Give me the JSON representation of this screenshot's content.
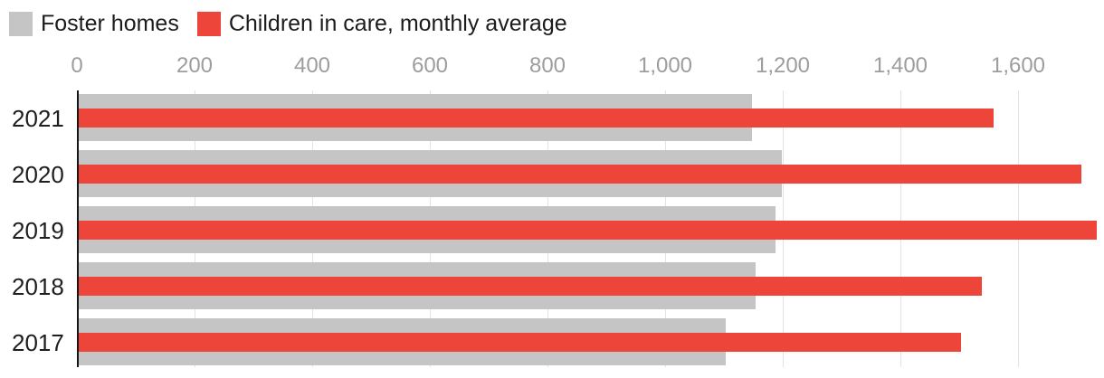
{
  "legend": {
    "items": [
      {
        "label": "Foster homes",
        "color": "#c5c5c5"
      },
      {
        "label": "Children in care, monthly average",
        "color": "#ed4539"
      }
    ]
  },
  "chart_data": {
    "type": "bar",
    "orientation": "horizontal",
    "title": "",
    "categories": [
      "2021",
      "2020",
      "2019",
      "2018",
      "2017"
    ],
    "series": [
      {
        "name": "Foster homes",
        "color": "#c5c5c5",
        "values": [
          1145,
          1195,
          1185,
          1150,
          1100
        ]
      },
      {
        "name": "Children in care, monthly average",
        "color": "#ed4539",
        "values": [
          1555,
          1705,
          1730,
          1535,
          1500
        ]
      }
    ],
    "x_axis": {
      "position": "top",
      "tick_labels": [
        "0",
        "200",
        "400",
        "600",
        "800",
        "1,000",
        "1,200",
        "1,400",
        "1,600"
      ],
      "tick_values": [
        0,
        200,
        400,
        600,
        800,
        1000,
        1200,
        1400,
        1600
      ],
      "range": [
        0,
        1748
      ]
    },
    "grid": true,
    "legend_position": "top-left"
  },
  "colors": {
    "grid": "#e3e3e3",
    "axis_line": "#161616",
    "tick_label": "#9d9d9d",
    "category_label": "#1e1e1e",
    "background": "#ffffff"
  }
}
